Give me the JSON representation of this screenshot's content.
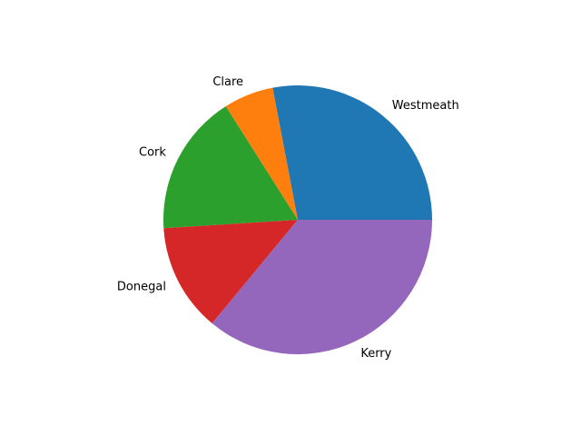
{
  "chart_data": {
    "type": "pie",
    "start_angle_deg": 0,
    "direction": "counterclockwise",
    "slices": [
      {
        "label": "Westmeath",
        "value": 28,
        "color": "#1f77b4"
      },
      {
        "label": "Clare",
        "value": 6,
        "color": "#ff7f0e"
      },
      {
        "label": "Cork",
        "value": 17,
        "color": "#2ca02c"
      },
      {
        "label": "Donegal",
        "value": 13,
        "color": "#d62728"
      },
      {
        "label": "Kerry",
        "value": 36,
        "color": "#9467bd"
      }
    ]
  }
}
